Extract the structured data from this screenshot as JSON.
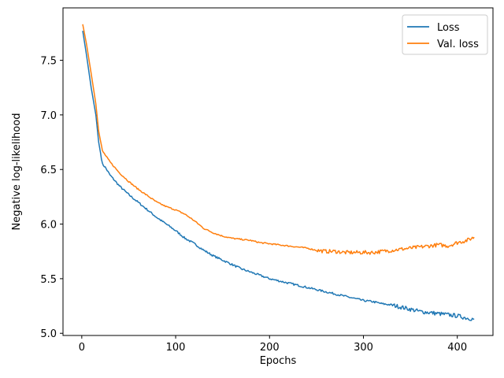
{
  "chart_data": {
    "type": "line",
    "title": "",
    "xlabel": "Epochs",
    "ylabel": "Negative log-likelihood",
    "xlim": [
      -20,
      438
    ],
    "ylim": [
      4.98,
      7.98
    ],
    "xticks": [
      0,
      100,
      200,
      300,
      400
    ],
    "yticks": [
      5.0,
      5.5,
      6.0,
      6.5,
      7.0,
      7.5
    ],
    "grid": false,
    "legend_position": "top-right",
    "series": [
      {
        "name": "Loss",
        "color": "#1f77b4",
        "points": [
          [
            1,
            7.77
          ],
          [
            5,
            7.55
          ],
          [
            10,
            7.25
          ],
          [
            15,
            7.0
          ],
          [
            18,
            6.75
          ],
          [
            22,
            6.55
          ],
          [
            25,
            6.52
          ],
          [
            30,
            6.45
          ],
          [
            40,
            6.35
          ],
          [
            50,
            6.27
          ],
          [
            60,
            6.2
          ],
          [
            70,
            6.13
          ],
          [
            80,
            6.06
          ],
          [
            90,
            6.0
          ],
          [
            100,
            5.94
          ],
          [
            110,
            5.87
          ],
          [
            120,
            5.82
          ],
          [
            130,
            5.76
          ],
          [
            140,
            5.71
          ],
          [
            150,
            5.67
          ],
          [
            160,
            5.63
          ],
          [
            170,
            5.59
          ],
          [
            180,
            5.56
          ],
          [
            190,
            5.53
          ],
          [
            200,
            5.5
          ],
          [
            210,
            5.48
          ],
          [
            220,
            5.46
          ],
          [
            230,
            5.44
          ],
          [
            240,
            5.42
          ],
          [
            250,
            5.4
          ],
          [
            260,
            5.38
          ],
          [
            270,
            5.36
          ],
          [
            280,
            5.34
          ],
          [
            290,
            5.32
          ],
          [
            300,
            5.3
          ],
          [
            310,
            5.29
          ],
          [
            320,
            5.27
          ],
          [
            330,
            5.26
          ],
          [
            340,
            5.24
          ],
          [
            350,
            5.22
          ],
          [
            360,
            5.2
          ],
          [
            370,
            5.19
          ],
          [
            380,
            5.18
          ],
          [
            390,
            5.17
          ],
          [
            400,
            5.16
          ],
          [
            410,
            5.14
          ],
          [
            418,
            5.13
          ]
        ]
      },
      {
        "name": "Val. loss",
        "color": "#ff7f0e",
        "points": [
          [
            1,
            7.83
          ],
          [
            5,
            7.65
          ],
          [
            10,
            7.38
          ],
          [
            15,
            7.1
          ],
          [
            18,
            6.85
          ],
          [
            22,
            6.67
          ],
          [
            30,
            6.57
          ],
          [
            40,
            6.47
          ],
          [
            50,
            6.39
          ],
          [
            60,
            6.32
          ],
          [
            70,
            6.26
          ],
          [
            80,
            6.2
          ],
          [
            90,
            6.16
          ],
          [
            100,
            6.13
          ],
          [
            110,
            6.09
          ],
          [
            120,
            6.03
          ],
          [
            130,
            5.96
          ],
          [
            140,
            5.92
          ],
          [
            150,
            5.89
          ],
          [
            160,
            5.87
          ],
          [
            170,
            5.86
          ],
          [
            180,
            5.85
          ],
          [
            190,
            5.83
          ],
          [
            200,
            5.82
          ],
          [
            210,
            5.81
          ],
          [
            220,
            5.8
          ],
          [
            230,
            5.79
          ],
          [
            240,
            5.78
          ],
          [
            250,
            5.76
          ],
          [
            260,
            5.75
          ],
          [
            270,
            5.75
          ],
          [
            280,
            5.74
          ],
          [
            290,
            5.74
          ],
          [
            300,
            5.74
          ],
          [
            310,
            5.74
          ],
          [
            320,
            5.75
          ],
          [
            330,
            5.76
          ],
          [
            340,
            5.77
          ],
          [
            350,
            5.78
          ],
          [
            360,
            5.79
          ],
          [
            370,
            5.8
          ],
          [
            380,
            5.81
          ],
          [
            390,
            5.8
          ],
          [
            400,
            5.83
          ],
          [
            410,
            5.85
          ],
          [
            418,
            5.88
          ]
        ]
      }
    ]
  }
}
